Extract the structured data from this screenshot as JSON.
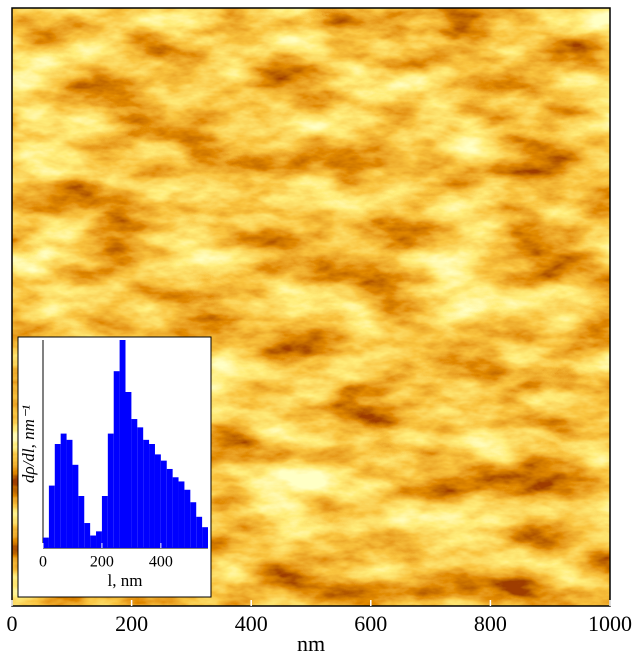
{
  "chart_data": [
    {
      "type": "image",
      "xlabel": "nm",
      "xlim": [
        0,
        1000
      ],
      "xticks": [
        0,
        200,
        400,
        600,
        800,
        1000
      ]
    },
    {
      "type": "histogram",
      "xlabel": "l, nm",
      "ylabel": "dρ/dl, nm⁻¹",
      "color": "#0000ff",
      "bins": [
        0,
        20,
        40,
        60,
        80,
        100,
        120,
        140,
        160,
        180,
        200,
        220,
        240,
        260,
        280,
        300,
        320,
        340,
        360,
        380,
        400,
        420,
        440,
        460,
        480,
        500,
        520,
        540,
        560
      ],
      "counts": [
        5,
        30,
        50,
        55,
        52,
        40,
        25,
        12,
        6,
        8,
        25,
        55,
        85,
        100,
        75,
        62,
        58,
        52,
        50,
        45,
        42,
        38,
        34,
        32,
        28,
        22,
        15,
        10
      ],
      "xlim": [
        0,
        560
      ],
      "ylim": [
        0,
        100
      ],
      "xticks": [
        0,
        200,
        400
      ]
    }
  ]
}
